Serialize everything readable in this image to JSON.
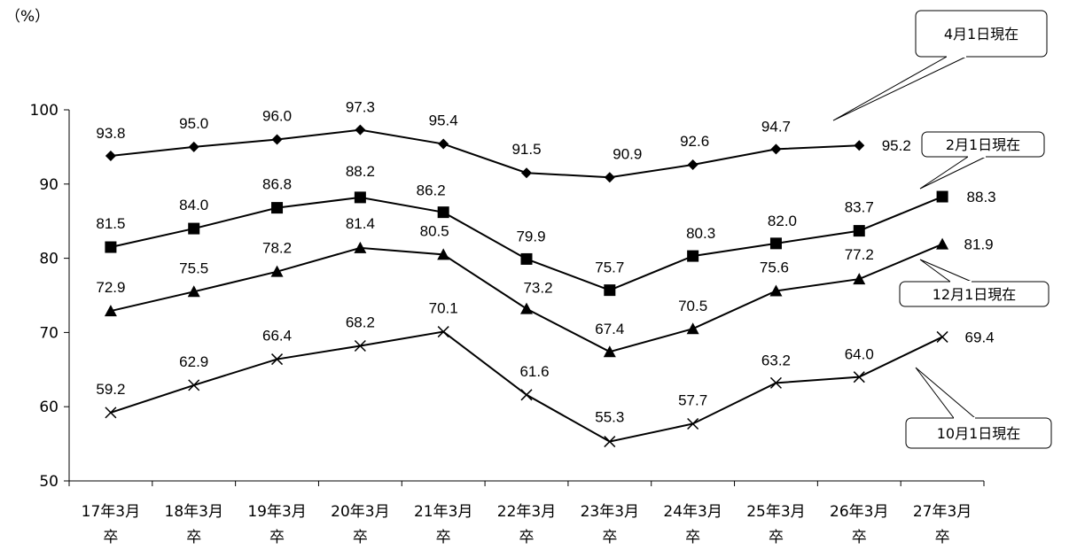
{
  "chart_data": {
    "type": "line",
    "title": "",
    "y_unit_label": "（%）",
    "ylim": [
      50,
      100
    ],
    "yticks": [
      50,
      60,
      70,
      80,
      90,
      100
    ],
    "grid": false,
    "categories": [
      [
        "17年3月",
        "卒"
      ],
      [
        "18年3月",
        "卒"
      ],
      [
        "19年3月",
        "卒"
      ],
      [
        "20年3月",
        "卒"
      ],
      [
        "21年3月",
        "卒"
      ],
      [
        "22年3月",
        "卒"
      ],
      [
        "23年3月",
        "卒"
      ],
      [
        "24年3月",
        "卒"
      ],
      [
        "25年3月",
        "卒"
      ],
      [
        "26年3月",
        "卒"
      ],
      [
        "27年3月",
        "卒"
      ]
    ],
    "series": [
      {
        "name": "4月1日現在",
        "marker": "diamond",
        "values": [
          93.8,
          95.0,
          96.0,
          97.3,
          95.4,
          91.5,
          90.9,
          92.6,
          94.7,
          95.2,
          null
        ]
      },
      {
        "name": "2月1日現在",
        "marker": "square",
        "values": [
          81.5,
          84.0,
          86.8,
          88.2,
          86.2,
          79.9,
          75.7,
          80.3,
          82.0,
          83.7,
          88.3
        ]
      },
      {
        "name": "12月1日現在",
        "marker": "triangle",
        "values": [
          72.9,
          75.5,
          78.2,
          81.4,
          80.5,
          73.2,
          67.4,
          70.5,
          75.6,
          77.2,
          81.9
        ]
      },
      {
        "name": "10月1日現在",
        "marker": "cross",
        "values": [
          59.2,
          62.9,
          66.4,
          68.2,
          70.1,
          61.6,
          55.3,
          57.7,
          63.2,
          64.0,
          69.4
        ]
      }
    ],
    "value_labels": [
      [
        "93.8",
        "95.0",
        "96.0",
        "97.3",
        "95.4",
        "91.5",
        "90.9",
        "92.6",
        "94.7",
        "95.2",
        ""
      ],
      [
        "81.5",
        "84.0",
        "86.8",
        "88.2",
        "86.2",
        "79.9",
        "75.7",
        "80.3",
        "82.0",
        "83.7",
        "88.3"
      ],
      [
        "72.9",
        "75.5",
        "78.2",
        "81.4",
        "80.5",
        "73.2",
        "67.4",
        "70.5",
        "75.6",
        "77.2",
        "81.9"
      ],
      [
        "59.2",
        "62.9",
        "66.4",
        "68.2",
        "70.1",
        "61.6",
        "55.3",
        "57.7",
        "63.2",
        "64.0",
        "69.4"
      ]
    ],
    "legend": "callouts"
  }
}
